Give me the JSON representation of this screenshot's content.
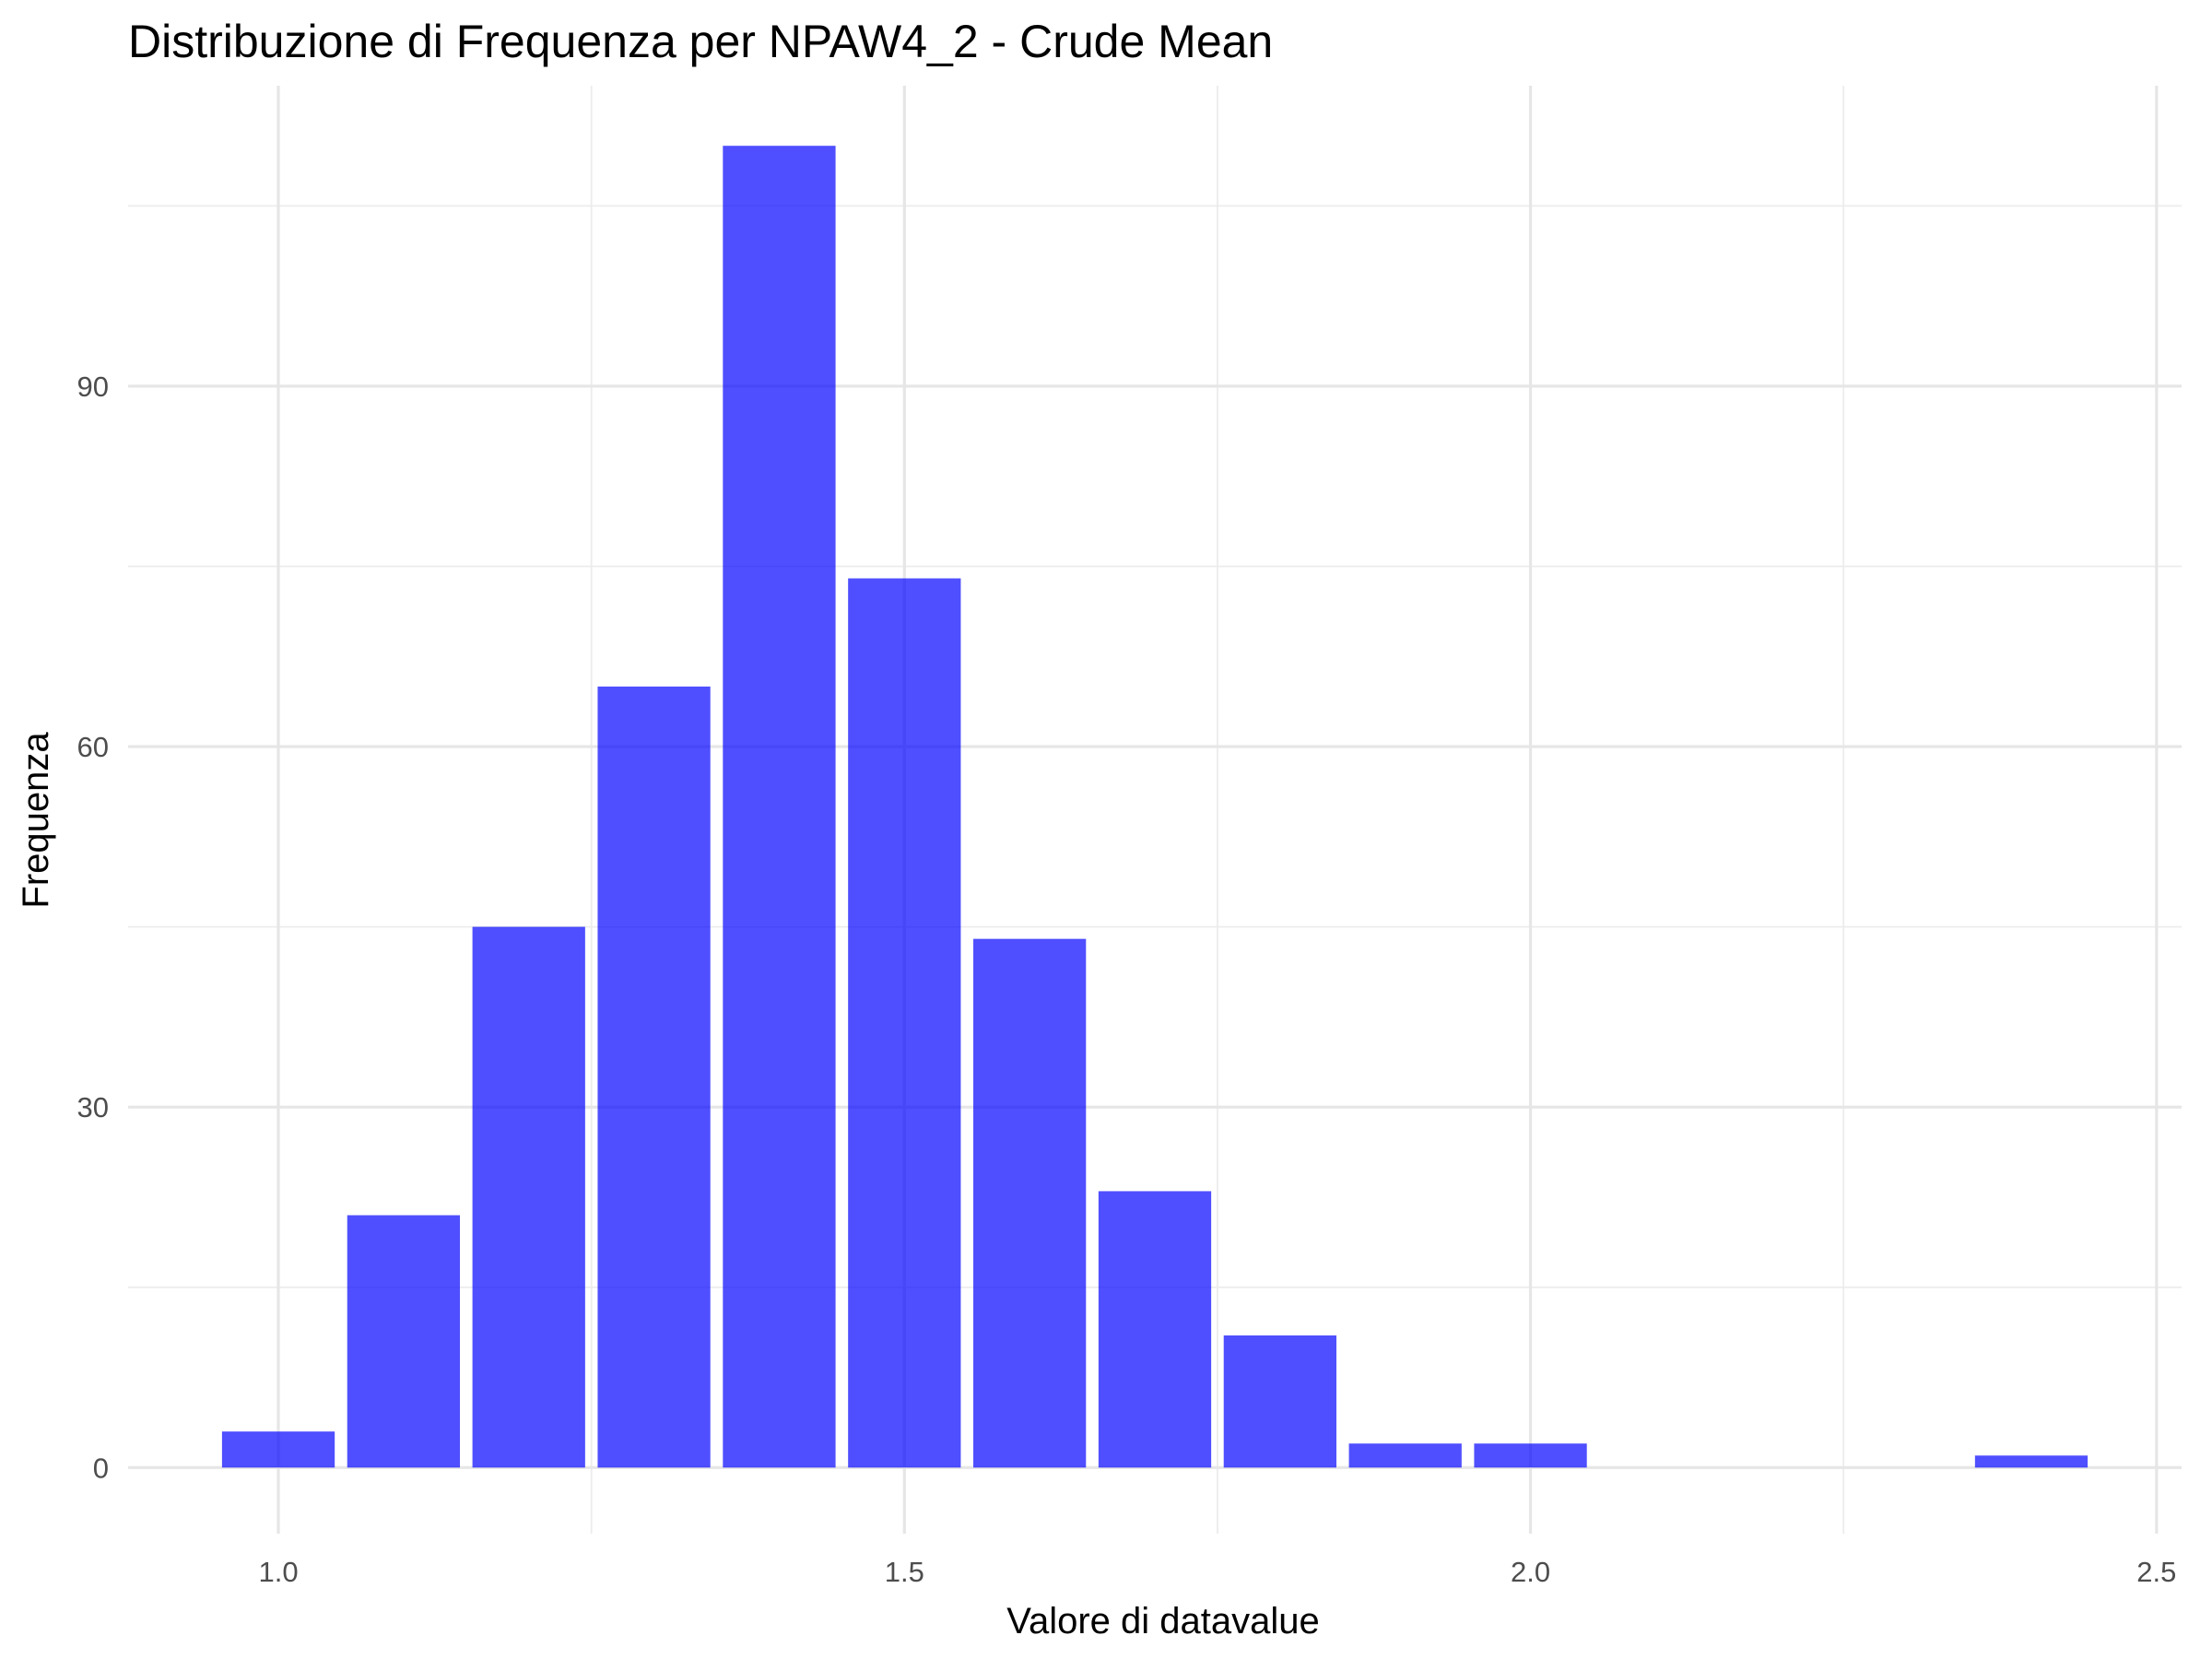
{
  "chart_data": {
    "type": "bar",
    "title": "Distribuzione di Frequenza per NPAW4_2 - Crude Mean",
    "xlabel": "Valore di datavalue",
    "ylabel": "Frequenza",
    "xlim": [
      0.88,
      2.52
    ],
    "ylim": [
      -5.5,
      115
    ],
    "x_ticks": [
      1.0,
      1.5,
      2.0,
      2.5
    ],
    "x_tick_labels": [
      "1.0",
      "1.5",
      "2.0",
      "2.5"
    ],
    "y_ticks": [
      0,
      30,
      60,
      90
    ],
    "y_tick_labels": [
      "0",
      "30",
      "60",
      "90"
    ],
    "bin_width": 0.1,
    "bar_fill_ratio": 0.9,
    "bar_color": "#0000ff",
    "bar_opacity": 0.69,
    "grid": true,
    "bins": [
      {
        "x": 1.0,
        "count": 3
      },
      {
        "x": 1.1,
        "count": 21
      },
      {
        "x": 1.2,
        "count": 45
      },
      {
        "x": 1.3,
        "count": 65
      },
      {
        "x": 1.4,
        "count": 110
      },
      {
        "x": 1.5,
        "count": 74
      },
      {
        "x": 1.6,
        "count": 44
      },
      {
        "x": 1.7,
        "count": 23
      },
      {
        "x": 1.8,
        "count": 11
      },
      {
        "x": 1.9,
        "count": 2
      },
      {
        "x": 2.0,
        "count": 2
      },
      {
        "x": 2.1,
        "count": 0
      },
      {
        "x": 2.2,
        "count": 0
      },
      {
        "x": 2.3,
        "count": 0
      },
      {
        "x": 2.4,
        "count": 1
      }
    ]
  }
}
